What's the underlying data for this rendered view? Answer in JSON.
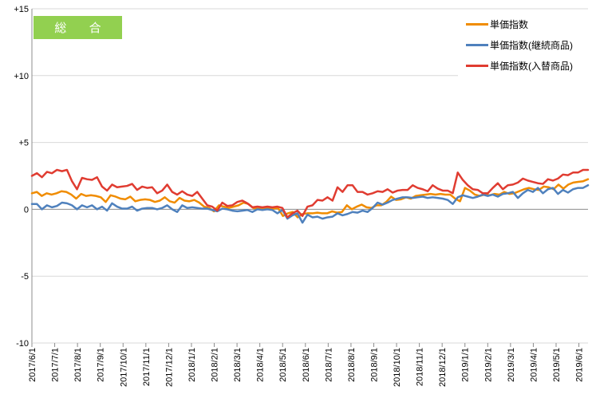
{
  "badge": {
    "label": "総 合"
  },
  "legend": [
    {
      "label": "単価指数",
      "color": "#f08c00"
    },
    {
      "label": "単価指数(継続商品)",
      "color": "#4f81bd"
    },
    {
      "label": "単価指数(入替商品)",
      "color": "#e03c31"
    }
  ],
  "chart_data": {
    "type": "line",
    "title": "",
    "xlabel": "",
    "ylabel": "",
    "ylim": [
      -10,
      15
    ],
    "yticks": [
      -10,
      -5,
      0,
      5,
      10,
      15
    ],
    "ytick_labels": [
      "-10",
      "-5",
      "0",
      "+5",
      "+10",
      "+15"
    ],
    "grid": "horizontal",
    "legend_position": "top-right",
    "x_tick_labels": [
      "2017/6/1",
      "2017/7/1",
      "2017/8/1",
      "2017/9/1",
      "2017/10/1",
      "2017/11/1",
      "2017/12/1",
      "2018/1/1",
      "2018/2/1",
      "2018/3/1",
      "2018/4/1",
      "2018/5/1",
      "2018/6/1",
      "2018/7/1",
      "2018/8/1",
      "2018/9/1",
      "2018/10/1",
      "2018/11/1",
      "2018/12/1",
      "2019/1/1",
      "2019/2/1",
      "2019/3/1",
      "2019/4/1",
      "2019/5/1",
      "2019/6/1"
    ],
    "series": [
      {
        "name": "単価指数",
        "color": "#f08c00",
        "values": [
          1.2,
          1.3,
          1.0,
          1.2,
          1.1,
          1.2,
          1.35,
          1.3,
          1.1,
          0.8,
          1.15,
          1.0,
          1.05,
          1.0,
          0.9,
          0.55,
          1.05,
          0.95,
          0.8,
          0.75,
          0.95,
          0.6,
          0.7,
          0.75,
          0.7,
          0.55,
          0.65,
          0.9,
          0.6,
          0.5,
          0.85,
          0.65,
          0.6,
          0.7,
          0.5,
          0.2,
          0.1,
          -0.15,
          0.3,
          0.2,
          0.1,
          0.2,
          0.3,
          0.5,
          0.4,
          0.1,
          0.05,
          0.05,
          0.1,
          0.05,
          0.1,
          -0.5,
          -0.3,
          -0.2,
          -0.6,
          -0.35,
          -0.3,
          -0.3,
          -0.25,
          -0.3,
          -0.3,
          -0.15,
          -0.25,
          -0.2,
          0.3,
          0.0,
          0.2,
          0.35,
          0.15,
          0.1,
          0.3,
          0.3,
          0.55,
          0.95,
          0.7,
          0.75,
          0.9,
          0.8,
          1.0,
          1.05,
          1.1,
          1.15,
          1.1,
          1.15,
          1.1,
          1.1,
          0.8,
          0.6,
          1.6,
          1.4,
          1.1,
          1.0,
          1.1,
          1.05,
          1.15,
          1.1,
          1.3,
          1.15,
          1.2,
          1.35,
          1.5,
          1.6,
          1.5,
          1.45,
          1.7,
          1.65,
          1.5,
          1.85,
          1.55,
          1.85,
          2.0,
          2.05,
          2.1,
          2.25
        ]
      },
      {
        "name": "単価指数(継続商品)",
        "color": "#4f81bd",
        "values": [
          0.4,
          0.4,
          0.0,
          0.3,
          0.15,
          0.25,
          0.5,
          0.45,
          0.3,
          0.0,
          0.3,
          0.15,
          0.3,
          0.0,
          0.2,
          -0.1,
          0.45,
          0.2,
          0.05,
          0.05,
          0.2,
          -0.1,
          0.05,
          0.1,
          0.1,
          0.0,
          0.1,
          0.3,
          0.0,
          -0.2,
          0.3,
          0.1,
          0.15,
          0.1,
          0.05,
          0.05,
          -0.05,
          -0.15,
          0.05,
          0.0,
          -0.1,
          -0.15,
          -0.1,
          -0.05,
          -0.2,
          0.0,
          -0.05,
          0.0,
          -0.05,
          -0.3,
          -0.05,
          -0.7,
          -0.45,
          -0.3,
          -1.0,
          -0.4,
          -0.6,
          -0.55,
          -0.7,
          -0.6,
          -0.55,
          -0.3,
          -0.45,
          -0.35,
          -0.2,
          -0.25,
          -0.1,
          -0.2,
          0.1,
          0.5,
          0.35,
          0.5,
          0.7,
          0.8,
          0.9,
          0.9,
          0.85,
          0.9,
          0.95,
          0.85,
          0.9,
          0.85,
          0.8,
          0.7,
          0.4,
          0.9,
          1.05,
          0.95,
          0.85,
          0.95,
          1.1,
          1.0,
          1.1,
          0.95,
          1.15,
          1.2,
          1.3,
          0.85,
          1.2,
          1.45,
          1.3,
          1.6,
          1.2,
          1.5,
          1.6,
          1.15,
          1.45,
          1.25,
          1.5,
          1.6,
          1.6,
          1.8
        ]
      },
      {
        "name": "単価指数(入替商品)",
        "color": "#e03c31",
        "values": [
          2.5,
          2.7,
          2.4,
          2.8,
          2.7,
          2.95,
          2.85,
          2.95,
          2.1,
          1.5,
          2.35,
          2.25,
          2.2,
          2.4,
          1.7,
          1.4,
          1.85,
          1.65,
          1.7,
          1.75,
          1.9,
          1.45,
          1.7,
          1.6,
          1.65,
          1.2,
          1.4,
          1.85,
          1.3,
          1.1,
          1.35,
          1.1,
          1.0,
          1.3,
          0.8,
          0.3,
          0.2,
          -0.1,
          0.5,
          0.25,
          0.3,
          0.55,
          0.65,
          0.45,
          0.15,
          0.2,
          0.15,
          0.2,
          0.15,
          0.2,
          0.1,
          -0.6,
          -0.3,
          -0.1,
          -0.5,
          0.2,
          0.3,
          0.7,
          0.65,
          0.9,
          0.65,
          1.65,
          1.3,
          1.8,
          1.8,
          1.3,
          1.3,
          1.1,
          1.2,
          1.35,
          1.3,
          1.5,
          1.25,
          1.4,
          1.45,
          1.45,
          1.8,
          1.6,
          1.5,
          1.35,
          1.8,
          1.55,
          1.4,
          1.4,
          1.2,
          2.75,
          2.2,
          1.8,
          1.5,
          1.45,
          1.2,
          1.2,
          1.6,
          1.95,
          1.5,
          1.8,
          1.85,
          2.0,
          2.3,
          2.15,
          2.05,
          1.95,
          1.9,
          2.25,
          2.15,
          2.3,
          2.6,
          2.55,
          2.75,
          2.75,
          2.95,
          2.95
        ]
      }
    ]
  }
}
